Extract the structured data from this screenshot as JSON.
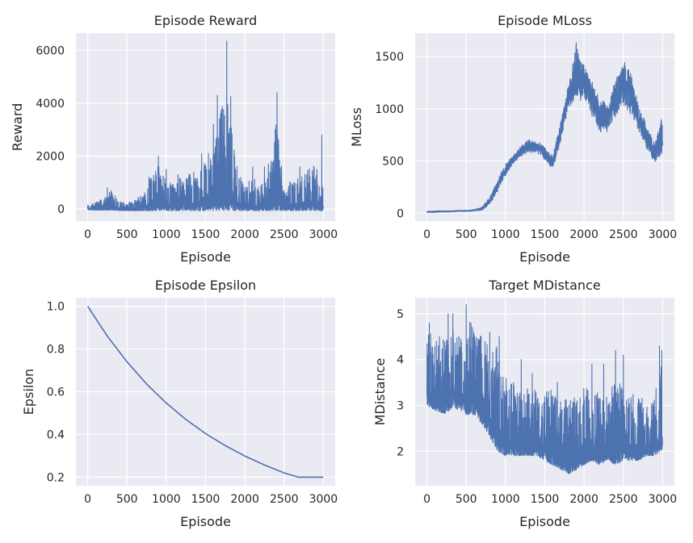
{
  "chart_data": [
    {
      "type": "line",
      "title": "Episode Reward",
      "xlabel": "Episode",
      "ylabel": "Reward",
      "xlim": [
        -150,
        3150
      ],
      "ylim": [
        -450,
        6650
      ],
      "xticks": [
        0,
        500,
        1000,
        1500,
        2000,
        2500,
        3000
      ],
      "yticks": [
        0,
        2000,
        4000,
        6000
      ],
      "grid": true,
      "style": "noisy",
      "color": "#4c72b0",
      "series": [
        {
          "x": [
            0,
            100,
            200,
            300,
            400,
            500,
            600,
            700,
            800,
            900,
            1000,
            1100,
            1200,
            1300,
            1400,
            1500,
            1600,
            1700,
            1800,
            1900,
            2000,
            2100,
            2200,
            2300,
            2400,
            2500,
            2600,
            2700,
            2800,
            2900,
            3000
          ],
          "low": [
            -30,
            -40,
            -40,
            -40,
            -50,
            -60,
            -60,
            -60,
            -60,
            -60,
            -60,
            -60,
            -60,
            -60,
            -60,
            -60,
            -60,
            -60,
            -60,
            -60,
            -60,
            -60,
            -60,
            -60,
            -60,
            -60,
            -60,
            -60,
            -60,
            -60,
            -60
          ],
          "high": [
            150,
            250,
            400,
            700,
            300,
            250,
            350,
            600,
            1200,
            1800,
            1100,
            900,
            1300,
            1400,
            1200,
            1900,
            2500,
            3900,
            4000,
            1500,
            900,
            1200,
            1000,
            1200,
            3500,
            900,
            1100,
            1200,
            1500,
            1700,
            800
          ],
          "spikes": [
            [
              160,
              350
            ],
            [
              250,
              800
            ],
            [
              300,
              700
            ],
            [
              350,
              500
            ],
            [
              780,
              1200
            ],
            [
              900,
              2000
            ],
            [
              1000,
              1500
            ],
            [
              1150,
              1300
            ],
            [
              1350,
              1400
            ],
            [
              1450,
              2100
            ],
            [
              1600,
              3200
            ],
            [
              1650,
              4300
            ],
            [
              1700,
              3700
            ],
            [
              1770,
              6350
            ],
            [
              1820,
              4250
            ],
            [
              1900,
              1600
            ],
            [
              2100,
              1600
            ],
            [
              2250,
              1600
            ],
            [
              2300,
              1700
            ],
            [
              2410,
              4400
            ],
            [
              2700,
              1600
            ],
            [
              2790,
              1300
            ],
            [
              2980,
              2800
            ]
          ]
        }
      ]
    },
    {
      "type": "line",
      "title": "Episode MLoss",
      "xlabel": "Episode",
      "ylabel": "MLoss",
      "xlim": [
        -150,
        3150
      ],
      "ylim": [
        -75,
        1725
      ],
      "xticks": [
        0,
        500,
        1000,
        1500,
        2000,
        2500,
        3000
      ],
      "yticks": [
        0,
        500,
        1000,
        1500
      ],
      "grid": true,
      "style": "band",
      "color": "#4c72b0",
      "series": [
        {
          "x": [
            0,
            100,
            200,
            300,
            400,
            500,
            600,
            700,
            800,
            900,
            1000,
            1100,
            1200,
            1300,
            1400,
            1500,
            1600,
            1700,
            1800,
            1900,
            2000,
            2100,
            2200,
            2300,
            2400,
            2500,
            2600,
            2700,
            2800,
            2900,
            3000
          ],
          "low": [
            5,
            5,
            10,
            10,
            15,
            15,
            20,
            25,
            80,
            200,
            350,
            470,
            540,
            560,
            570,
            500,
            400,
            650,
            1000,
            1050,
            1050,
            900,
            750,
            780,
            900,
            1000,
            900,
            750,
            600,
            450,
            500
          ],
          "high": [
            20,
            25,
            25,
            25,
            30,
            30,
            40,
            60,
            170,
            330,
            480,
            560,
            660,
            720,
            700,
            640,
            560,
            880,
            1250,
            1650,
            1450,
            1300,
            1100,
            1060,
            1300,
            1550,
            1350,
            1050,
            850,
            680,
            1000
          ]
        }
      ]
    },
    {
      "type": "line",
      "title": "Episode Epsilon",
      "xlabel": "Episode",
      "ylabel": "Epsilon",
      "xlim": [
        -150,
        3150
      ],
      "ylim": [
        0.16,
        1.04
      ],
      "xticks": [
        0,
        500,
        1000,
        1500,
        2000,
        2500,
        3000
      ],
      "yticks": [
        0.2,
        0.4,
        0.6,
        0.8,
        1.0
      ],
      "grid": true,
      "style": "smooth",
      "color": "#4c72b0",
      "series": [
        {
          "x": [
            0,
            250,
            500,
            750,
            1000,
            1250,
            1500,
            1750,
            2000,
            2250,
            2500,
            2680,
            2750,
            3000
          ],
          "y": [
            1.0,
            0.86,
            0.74,
            0.636,
            0.547,
            0.47,
            0.404,
            0.348,
            0.299,
            0.257,
            0.22,
            0.2,
            0.2,
            0.2
          ]
        }
      ]
    },
    {
      "type": "line",
      "title": "Target MDistance",
      "xlabel": "Episode",
      "ylabel": "MDistance",
      "xlim": [
        -150,
        3150
      ],
      "ylim": [
        1.25,
        5.35
      ],
      "xticks": [
        0,
        500,
        1000,
        1500,
        2000,
        2500,
        3000
      ],
      "yticks": [
        2,
        3,
        4,
        5
      ],
      "grid": true,
      "style": "noisy",
      "color": "#4c72b0",
      "series": [
        {
          "x": [
            0,
            100,
            200,
            300,
            400,
            500,
            600,
            700,
            800,
            900,
            1000,
            1100,
            1200,
            1300,
            1400,
            1500,
            1600,
            1700,
            1800,
            1900,
            2000,
            2100,
            2200,
            2300,
            2400,
            2500,
            2600,
            2700,
            2800,
            2900,
            3000
          ],
          "low": [
            3.0,
            2.9,
            2.8,
            2.9,
            2.9,
            2.8,
            2.8,
            2.6,
            2.3,
            2.0,
            1.9,
            1.9,
            1.9,
            1.9,
            1.9,
            1.8,
            1.7,
            1.6,
            1.5,
            1.6,
            1.7,
            1.8,
            1.7,
            1.8,
            1.7,
            1.8,
            1.8,
            1.8,
            1.9,
            1.9,
            2.0
          ],
          "high": [
            4.8,
            4.5,
            4.6,
            4.8,
            4.9,
            5.1,
            4.8,
            4.5,
            4.4,
            4.3,
            3.8,
            3.6,
            3.4,
            3.5,
            3.3,
            3.3,
            3.4,
            3.1,
            3.2,
            3.4,
            3.4,
            3.3,
            3.3,
            3.2,
            3.6,
            3.4,
            3.3,
            3.3,
            3.1,
            3.2,
            4.3
          ],
          "spikes": [
            [
              30,
              4.8
            ],
            [
              270,
              5.0
            ],
            [
              330,
              5.0
            ],
            [
              500,
              5.2
            ],
            [
              800,
              4.6
            ],
            [
              920,
              4.5
            ],
            [
              1200,
              4.0
            ],
            [
              1340,
              3.7
            ],
            [
              1660,
              3.5
            ],
            [
              2100,
              3.9
            ],
            [
              2250,
              3.9
            ],
            [
              2400,
              4.2
            ],
            [
              2500,
              4.1
            ],
            [
              2960,
              4.3
            ],
            [
              2990,
              4.2
            ]
          ]
        }
      ]
    }
  ]
}
